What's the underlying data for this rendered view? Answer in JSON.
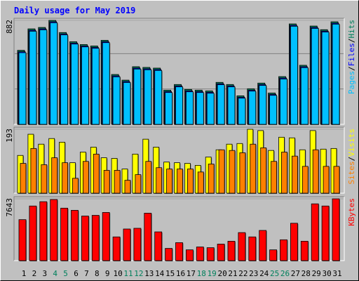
{
  "chart_data": [
    {
      "type": "bar",
      "title": "Daily usage for May 2019",
      "ylim": [
        0,
        882
      ],
      "yticks": [
        882
      ],
      "legend_separator": "/",
      "series": [
        {
          "name": "Hits",
          "color": "#00805c",
          "values": [
            628,
            810,
            822,
            882,
            779,
            701,
            677,
            665,
            713,
            423,
            375,
            489,
            483,
            477,
            290,
            338,
            296,
            290,
            284,
            356,
            338,
            242,
            302,
            350,
            266,
            405,
            852,
            501,
            834,
            803,
            870
          ]
        },
        {
          "name": "Files",
          "color": "#0000ff",
          "values": [
            616,
            798,
            810,
            870,
            767,
            689,
            665,
            653,
            701,
            411,
            363,
            477,
            471,
            465,
            278,
            326,
            284,
            278,
            272,
            344,
            326,
            230,
            290,
            338,
            254,
            393,
            840,
            489,
            822,
            791,
            858
          ]
        },
        {
          "name": "Pages",
          "color": "#00c0ff",
          "values": [
            608,
            790,
            802,
            862,
            759,
            681,
            657,
            645,
            693,
            403,
            355,
            469,
            463,
            457,
            270,
            318,
            276,
            270,
            264,
            336,
            318,
            222,
            282,
            330,
            246,
            385,
            832,
            481,
            814,
            783,
            850
          ]
        }
      ]
    },
    {
      "type": "bar",
      "ylim": [
        0,
        193
      ],
      "yticks": [
        193
      ],
      "legend_separator": "/",
      "series": [
        {
          "name": "Visits",
          "color": "#ffff00",
          "values": [
            114,
            178,
            148,
            165,
            154,
            92,
            124,
            139,
            107,
            105,
            73,
            118,
            163,
            139,
            94,
            92,
            90,
            84,
            109,
            131,
            148,
            150,
            193,
            189,
            129,
            169,
            167,
            131,
            189,
            133,
            135
          ]
        },
        {
          "name": "Sites",
          "color": "#ff8000",
          "values": [
            90,
            135,
            86,
            107,
            92,
            45,
            96,
            118,
            69,
            69,
            39,
            56,
            96,
            77,
            73,
            73,
            73,
            64,
            88,
            131,
            129,
            122,
            148,
            137,
            96,
            124,
            112,
            81,
            131,
            81,
            81
          ]
        }
      ]
    },
    {
      "type": "bar",
      "ylim": [
        0,
        7643
      ],
      "yticks": [
        7643
      ],
      "categories": [
        "1",
        "2",
        "3",
        "4",
        "5",
        "6",
        "7",
        "8",
        "9",
        "10",
        "11",
        "12",
        "13",
        "14",
        "15",
        "16",
        "17",
        "18",
        "19",
        "20",
        "21",
        "22",
        "23",
        "24",
        "25",
        "26",
        "27",
        "28",
        "29",
        "30",
        "31"
      ],
      "category_colors": [
        "#000000",
        "#000000",
        "#000000",
        "#00805c",
        "#00805c",
        "#000000",
        "#000000",
        "#000000",
        "#000000",
        "#000000",
        "#00805c",
        "#00805c",
        "#000000",
        "#000000",
        "#000000",
        "#000000",
        "#000000",
        "#00805c",
        "#00805c",
        "#000000",
        "#000000",
        "#000000",
        "#000000",
        "#000000",
        "#00805c",
        "#00805c",
        "#000000",
        "#000000",
        "#000000",
        "#000000",
        "#000000"
      ],
      "series": [
        {
          "name": "KBytes",
          "color": "#ff0000",
          "values": [
            5066,
            6754,
            7288,
            7554,
            6488,
            6221,
            5510,
            5599,
            5954,
            2933,
            3910,
            3999,
            5866,
            3555,
            1511,
            2222,
            1333,
            1689,
            1600,
            2044,
            2400,
            3466,
            2933,
            3733,
            1333,
            2577,
            4621,
            2400,
            7021,
            6754,
            7643
          ]
        }
      ]
    }
  ]
}
